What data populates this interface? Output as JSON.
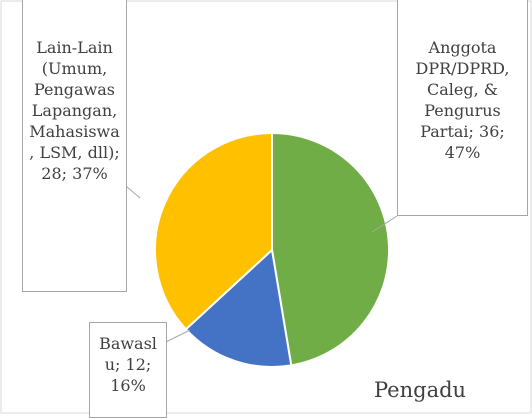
{
  "chart_data": {
    "type": "pie",
    "title": "Pengadu",
    "categories": [
      "Anggota DPR/DPRD, Caleg, & Pengurus Partai",
      "Bawaslu",
      "Lain-Lain (Umum, Pengawas Lapangan, Mahasiswa, LSM, dll)"
    ],
    "values": [
      36,
      12,
      28
    ],
    "value_labels": [
      "Anggota DPR/DPRD, Caleg, & Pengurus Partai; 36; 47%",
      "Bawaslu; 12; 16%",
      "Lain-Lain (Umum, Pengawas Lapangan, Mahasiswa, LSM, dll); 28; 37%"
    ],
    "colors": [
      "#70ad47",
      "#4472c4",
      "#ffc000"
    ]
  }
}
